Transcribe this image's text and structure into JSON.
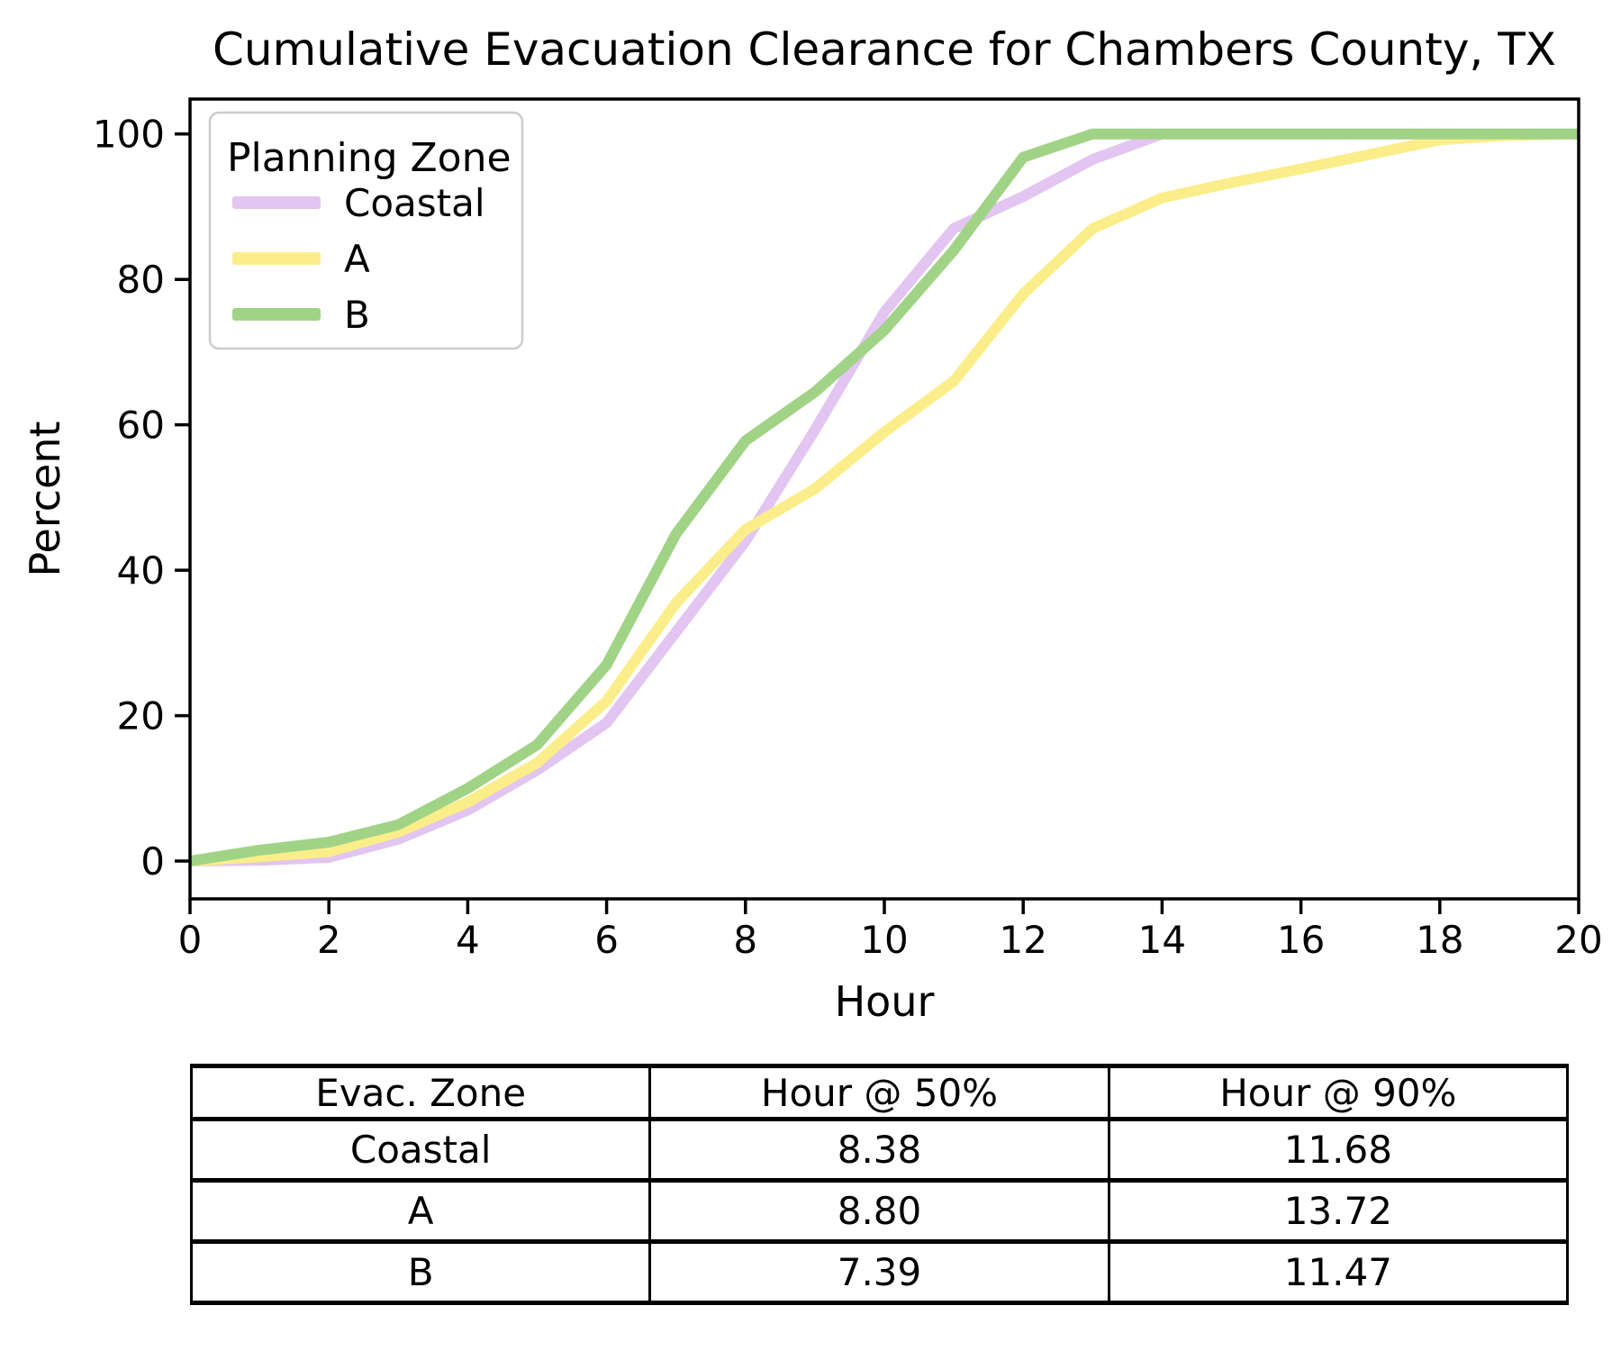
{
  "chart": {
    "title": "Cumulative Evacuation Clearance for Chambers County, TX",
    "xlabel": "Hour",
    "ylabel": "Percent"
  },
  "legend": {
    "title": "Planning Zone",
    "position": "upper left"
  },
  "chart_data": {
    "type": "line",
    "title": "Cumulative Evacuation Clearance for Chambers County, TX",
    "xlabel": "Hour",
    "ylabel": "Percent",
    "x": [
      0,
      1,
      2,
      3,
      4,
      5,
      6,
      7,
      8,
      9,
      10,
      11,
      12,
      13,
      14,
      15,
      16,
      17,
      18,
      19,
      20
    ],
    "series": [
      {
        "name": "Coastal",
        "color": "#e2c5f1",
        "values": [
          0,
          0.1,
          0.5,
          3,
          7,
          12.5,
          19,
          31.5,
          44,
          59.3,
          75.5,
          87,
          91.4,
          96.5,
          100,
          100,
          100,
          100,
          100,
          100,
          100
        ]
      },
      {
        "name": "A",
        "color": "#fbee8a",
        "values": [
          0,
          0.6,
          1.3,
          4,
          8.1,
          13.5,
          22,
          35.5,
          45.6,
          51.2,
          59,
          66,
          78,
          87,
          91.2,
          93.3,
          95.2,
          97.2,
          99.2,
          99.8,
          100
        ]
      },
      {
        "name": "B",
        "color": "#a1d387",
        "values": [
          0,
          1.5,
          2.6,
          5,
          10,
          16,
          27,
          45,
          57.8,
          64.5,
          73,
          84,
          96.8,
          100,
          100,
          100,
          100,
          100,
          100,
          100,
          100
        ]
      }
    ],
    "xticks": [
      0,
      2,
      4,
      6,
      8,
      10,
      12,
      14,
      16,
      18,
      20
    ],
    "yticks": [
      0,
      20,
      40,
      60,
      80,
      100
    ],
    "xlim": [
      0,
      20
    ],
    "ylim": [
      -5.2,
      104.8
    ],
    "grid": false,
    "legend_position": "upper left",
    "line_width": 12
  },
  "table": {
    "headers": [
      "Evac. Zone",
      "Hour @ 50%",
      "Hour @ 90%"
    ],
    "rows": [
      [
        "Coastal",
        "8.38",
        "11.68"
      ],
      [
        "A",
        "8.80",
        "13.72"
      ],
      [
        "B",
        "7.39",
        "11.47"
      ]
    ]
  }
}
